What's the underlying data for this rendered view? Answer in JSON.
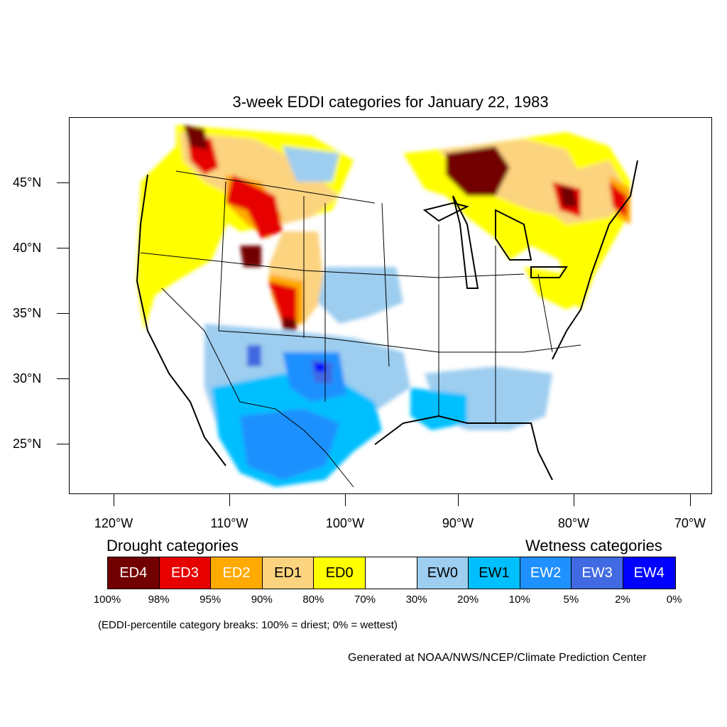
{
  "title": "3-week EDDI categories for January 22, 1983",
  "map": {
    "projection": "latitude-longitude",
    "lat_labels": [
      "45°N",
      "40°N",
      "35°N",
      "30°N",
      "25°N"
    ],
    "lon_labels": [
      "120°W",
      "110°W",
      "100°W",
      "90°W",
      "80°W",
      "70°W"
    ]
  },
  "legend": {
    "drought_heading": "Drought categories",
    "wetness_heading": "Wetness categories",
    "categories": [
      {
        "label": "ED4",
        "color": "#730000",
        "text_color": "#ffffff"
      },
      {
        "label": "ED3",
        "color": "#e60000",
        "text_color": "#ffffff"
      },
      {
        "label": "ED2",
        "color": "#ffaa00",
        "text_color": "#ffffff"
      },
      {
        "label": "ED1",
        "color": "#fcd37f",
        "text_color": "#000000"
      },
      {
        "label": "ED0",
        "color": "#ffff00",
        "text_color": "#000000"
      },
      {
        "label": "",
        "color": "#ffffff",
        "text_color": "#000000"
      },
      {
        "label": "EW0",
        "color": "#9dcdef",
        "text_color": "#000000"
      },
      {
        "label": "EW1",
        "color": "#00bfff",
        "text_color": "#000000"
      },
      {
        "label": "EW2",
        "color": "#1e90ff",
        "text_color": "#ffffff"
      },
      {
        "label": "EW3",
        "color": "#4169e1",
        "text_color": "#ffffff"
      },
      {
        "label": "EW4",
        "color": "#0000ff",
        "text_color": "#ffffff"
      }
    ],
    "breaks": [
      "100%",
      "98%",
      "95%",
      "90%",
      "80%",
      "70%",
      "30%",
      "20%",
      "10%",
      "5%",
      "2%",
      "0%"
    ],
    "note": "(EDDI-percentile category breaks: 100% = driest; 0% = wettest)"
  },
  "credit": "Generated at NOAA/NWS/NCEP/Climate Prediction Center"
}
